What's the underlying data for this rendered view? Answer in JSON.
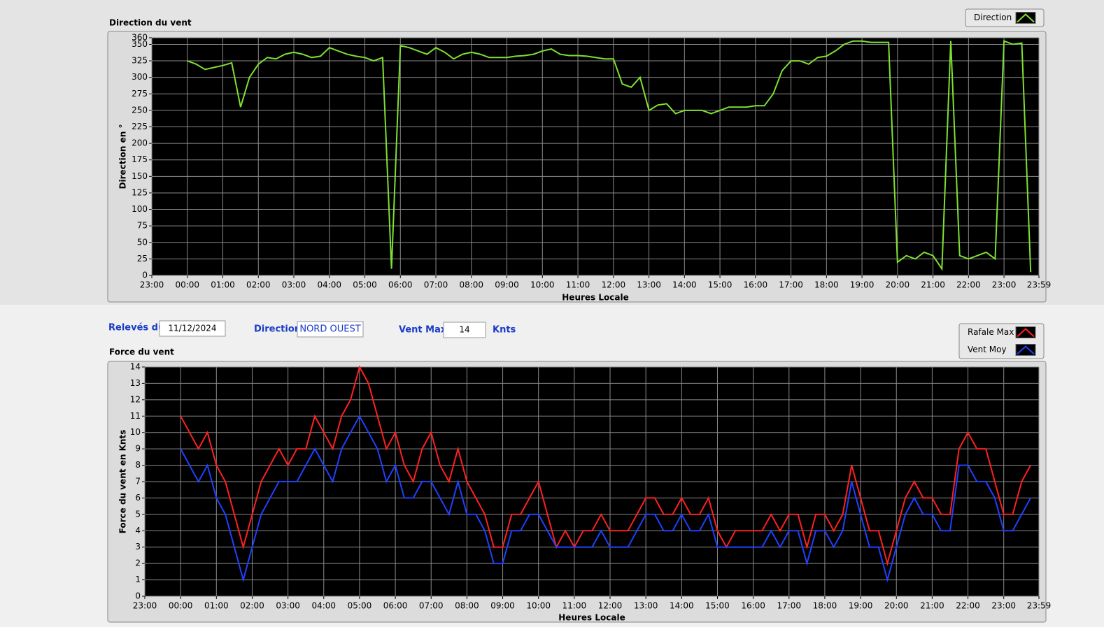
{
  "chart_data": [
    {
      "type": "line",
      "title": "Direction du vent",
      "x_label": "Heures Locale",
      "y_label": "Direction en °",
      "x": [
        0,
        0.25,
        0.5,
        0.75,
        1,
        1.25,
        1.5,
        1.75,
        2,
        2.25,
        2.5,
        2.75,
        3,
        3.25,
        3.5,
        3.75,
        4,
        4.25,
        4.5,
        4.75,
        5,
        5.25,
        5.5,
        5.75,
        6,
        6.25,
        6.5,
        6.75,
        7,
        7.25,
        7.5,
        7.75,
        8,
        8.25,
        8.5,
        8.75,
        9,
        9.25,
        9.5,
        9.75,
        10,
        10.25,
        10.5,
        10.75,
        11,
        11.25,
        11.5,
        11.75,
        12,
        12.25,
        12.5,
        12.75,
        13,
        13.25,
        13.5,
        13.75,
        14,
        14.25,
        14.5,
        14.75,
        15,
        15.25,
        15.5,
        15.75,
        16,
        16.25,
        16.5,
        16.75,
        17,
        17.25,
        17.5,
        17.75,
        18,
        18.25,
        18.5,
        18.75,
        19,
        19.25,
        19.5,
        19.75,
        20,
        20.25,
        20.5,
        20.75,
        21,
        21.25,
        21.5,
        21.75,
        22,
        22.25,
        22.5,
        22.75,
        23,
        23.25,
        23.5,
        23.75
      ],
      "series": [
        {
          "name": "Direction",
          "color": "#7fe030",
          "values": [
            325,
            320,
            312,
            315,
            318,
            322,
            255,
            300,
            320,
            330,
            328,
            335,
            338,
            335,
            330,
            332,
            345,
            340,
            335,
            332,
            330,
            325,
            330,
            10,
            348,
            345,
            340,
            335,
            345,
            338,
            328,
            335,
            338,
            335,
            330,
            330,
            330,
            332,
            333,
            335,
            340,
            343,
            335,
            333,
            333,
            332,
            330,
            328,
            328,
            290,
            285,
            300,
            250,
            258,
            260,
            245,
            250,
            250,
            250,
            245,
            250,
            255,
            255,
            255,
            257,
            257,
            275,
            310,
            325,
            325,
            320,
            330,
            332,
            340,
            350,
            355,
            355,
            353,
            353,
            353,
            20,
            30,
            25,
            35,
            30,
            10,
            355,
            30,
            25,
            30,
            35,
            25,
            355,
            350,
            352,
            5
          ]
        }
      ],
      "xlim": [
        -1,
        23.9833
      ],
      "xticks": [
        {
          "value": -1,
          "label": "23:00"
        },
        {
          "value": 0,
          "label": "00:00"
        },
        {
          "value": 1,
          "label": "01:00"
        },
        {
          "value": 2,
          "label": "02:00"
        },
        {
          "value": 3,
          "label": "03:00"
        },
        {
          "value": 4,
          "label": "04:00"
        },
        {
          "value": 5,
          "label": "05:00"
        },
        {
          "value": 6,
          "label": "06:00"
        },
        {
          "value": 7,
          "label": "07:00"
        },
        {
          "value": 8,
          "label": "08:00"
        },
        {
          "value": 9,
          "label": "09:00"
        },
        {
          "value": 10,
          "label": "10:00"
        },
        {
          "value": 11,
          "label": "11:00"
        },
        {
          "value": 12,
          "label": "12:00"
        },
        {
          "value": 13,
          "label": "13:00"
        },
        {
          "value": 14,
          "label": "14:00"
        },
        {
          "value": 15,
          "label": "15:00"
        },
        {
          "value": 16,
          "label": "16:00"
        },
        {
          "value": 17,
          "label": "17:00"
        },
        {
          "value": 18,
          "label": "18:00"
        },
        {
          "value": 19,
          "label": "19:00"
        },
        {
          "value": 20,
          "label": "20:00"
        },
        {
          "value": 21,
          "label": "21:00"
        },
        {
          "value": 22,
          "label": "22:00"
        },
        {
          "value": 23,
          "label": "23:00"
        },
        {
          "value": 23.9833,
          "label": "23:59"
        }
      ],
      "ylim": [
        0,
        360
      ],
      "yticks": [
        0,
        25,
        50,
        75,
        100,
        125,
        150,
        175,
        200,
        225,
        250,
        275,
        300,
        325,
        350,
        360
      ],
      "grid": true
    },
    {
      "type": "line",
      "title": "Force du vent",
      "x_label": "Heures Locale",
      "y_label": "Force du vent en Knts",
      "x": [
        0,
        0.25,
        0.5,
        0.75,
        1,
        1.25,
        1.5,
        1.75,
        2,
        2.25,
        2.5,
        2.75,
        3,
        3.25,
        3.5,
        3.75,
        4,
        4.25,
        4.5,
        4.75,
        5,
        5.25,
        5.5,
        5.75,
        6,
        6.25,
        6.5,
        6.75,
        7,
        7.25,
        7.5,
        7.75,
        8,
        8.25,
        8.5,
        8.75,
        9,
        9.25,
        9.5,
        9.75,
        10,
        10.25,
        10.5,
        10.75,
        11,
        11.25,
        11.5,
        11.75,
        12,
        12.25,
        12.5,
        12.75,
        13,
        13.25,
        13.5,
        13.75,
        14,
        14.25,
        14.5,
        14.75,
        15,
        15.25,
        15.5,
        15.75,
        16,
        16.25,
        16.5,
        16.75,
        17,
        17.25,
        17.5,
        17.75,
        18,
        18.25,
        18.5,
        18.75,
        19,
        19.25,
        19.5,
        19.75,
        20,
        20.25,
        20.5,
        20.75,
        21,
        21.25,
        21.5,
        21.75,
        22,
        22.25,
        22.5,
        22.75,
        23,
        23.25,
        23.5,
        23.75
      ],
      "series": [
        {
          "name": "Rafale Max",
          "color": "#ff2020",
          "values": [
            11,
            10,
            9,
            10,
            8,
            7,
            5,
            3,
            5,
            7,
            8,
            9,
            8,
            9,
            9,
            11,
            10,
            9,
            11,
            12,
            14,
            13,
            11,
            9,
            10,
            8,
            7,
            9,
            10,
            8,
            7,
            9,
            7,
            6,
            5,
            3,
            3,
            5,
            5,
            6,
            7,
            5,
            3,
            4,
            3,
            4,
            4,
            5,
            4,
            4,
            4,
            5,
            6,
            6,
            5,
            5,
            6,
            5,
            5,
            6,
            4,
            3,
            4,
            4,
            4,
            4,
            5,
            4,
            5,
            5,
            3,
            5,
            5,
            4,
            5,
            8,
            6,
            4,
            4,
            2,
            4,
            6,
            7,
            6,
            6,
            5,
            5,
            9,
            10,
            9,
            9,
            7,
            5,
            5,
            7,
            8
          ]
        },
        {
          "name": "Vent Moy",
          "color": "#2040ff",
          "values": [
            9,
            8,
            7,
            8,
            6,
            5,
            3,
            1,
            3,
            5,
            6,
            7,
            7,
            7,
            8,
            9,
            8,
            7,
            9,
            10,
            11,
            10,
            9,
            7,
            8,
            6,
            6,
            7,
            7,
            6,
            5,
            7,
            5,
            5,
            4,
            2,
            2,
            4,
            4,
            5,
            5,
            4,
            3,
            3,
            3,
            3,
            3,
            4,
            3,
            3,
            3,
            4,
            5,
            5,
            4,
            4,
            5,
            4,
            4,
            5,
            3,
            3,
            3,
            3,
            3,
            3,
            4,
            3,
            4,
            4,
            2,
            4,
            4,
            3,
            4,
            7,
            5,
            3,
            3,
            1,
            3,
            5,
            6,
            5,
            5,
            4,
            4,
            8,
            8,
            7,
            7,
            6,
            4,
            4,
            5,
            6
          ]
        }
      ],
      "xlim": [
        -1,
        23.9833
      ],
      "xticks": [
        {
          "value": -1,
          "label": "23:00"
        },
        {
          "value": 0,
          "label": "00:00"
        },
        {
          "value": 1,
          "label": "01:00"
        },
        {
          "value": 2,
          "label": "02:00"
        },
        {
          "value": 3,
          "label": "03:00"
        },
        {
          "value": 4,
          "label": "04:00"
        },
        {
          "value": 5,
          "label": "05:00"
        },
        {
          "value": 6,
          "label": "06:00"
        },
        {
          "value": 7,
          "label": "07:00"
        },
        {
          "value": 8,
          "label": "08:00"
        },
        {
          "value": 9,
          "label": "09:00"
        },
        {
          "value": 10,
          "label": "10:00"
        },
        {
          "value": 11,
          "label": "11:00"
        },
        {
          "value": 12,
          "label": "12:00"
        },
        {
          "value": 13,
          "label": "13:00"
        },
        {
          "value": 14,
          "label": "14:00"
        },
        {
          "value": 15,
          "label": "15:00"
        },
        {
          "value": 16,
          "label": "16:00"
        },
        {
          "value": 17,
          "label": "17:00"
        },
        {
          "value": 18,
          "label": "18:00"
        },
        {
          "value": 19,
          "label": "19:00"
        },
        {
          "value": 20,
          "label": "20:00"
        },
        {
          "value": 21,
          "label": "21:00"
        },
        {
          "value": 22,
          "label": "22:00"
        },
        {
          "value": 23,
          "label": "23:00"
        },
        {
          "value": 23.9833,
          "label": "23:59"
        }
      ],
      "ylim": [
        0,
        14
      ],
      "yticks": [
        0,
        1,
        2,
        3,
        4,
        5,
        6,
        7,
        8,
        9,
        10,
        11,
        12,
        13,
        14
      ],
      "grid": true
    }
  ],
  "form": {
    "date_label": "Relevés du",
    "date": "11/12/2024",
    "direction_label": "Direction",
    "direction": "NORD OUEST",
    "vent_max_label": "Vent Max",
    "vent_max": 14,
    "unit": "Knts"
  }
}
